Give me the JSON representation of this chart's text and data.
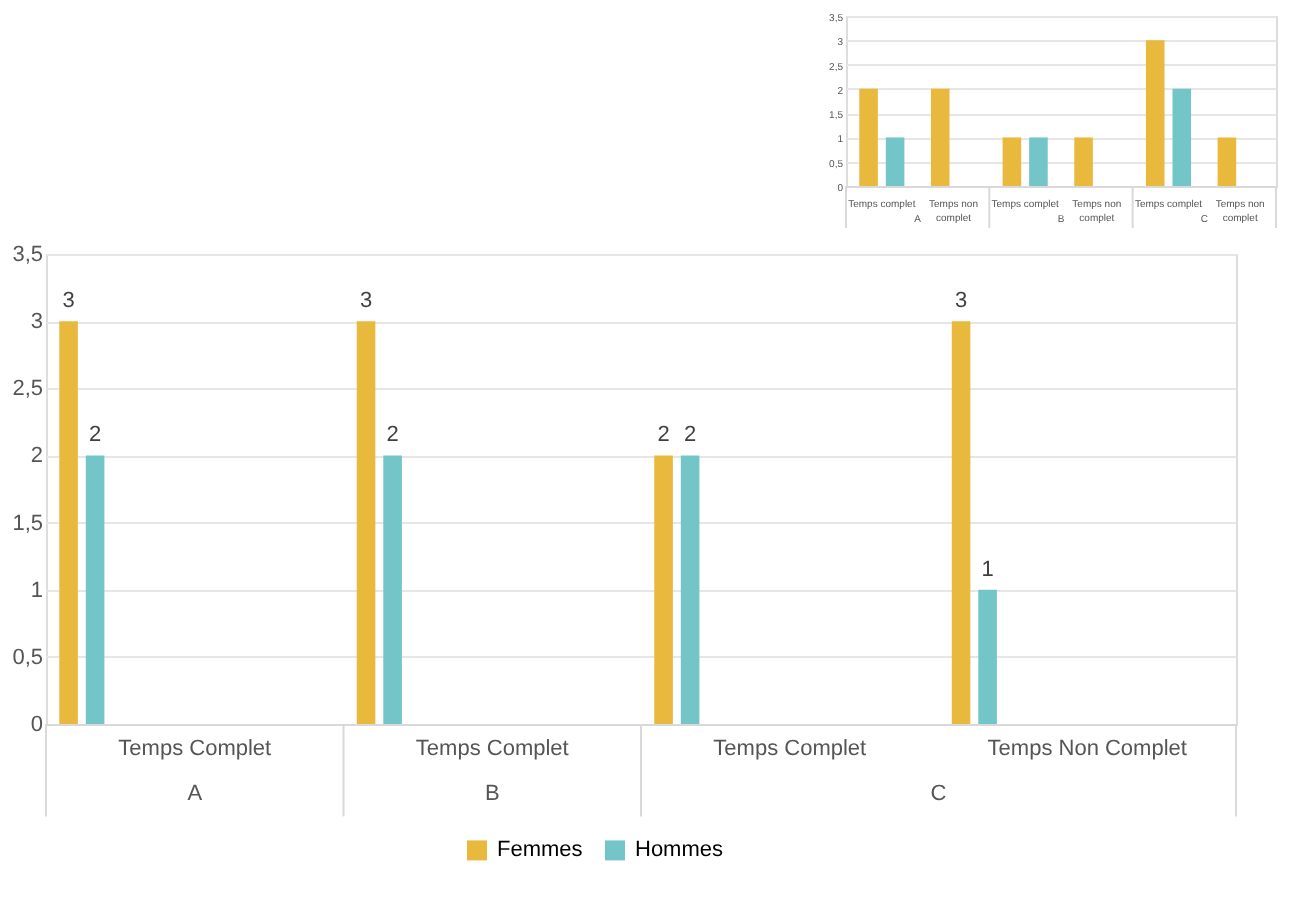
{
  "chart_data": [
    {
      "type": "bar",
      "categories": [
        "Temps complet",
        "Temps non complet",
        "Temps complet",
        "Temps non complet",
        "Temps complet",
        "Temps non complet"
      ],
      "annotations": [
        "A",
        "B",
        "C"
      ],
      "series": [
        {
          "color": "#e8b93d",
          "values": [
            2,
            2,
            1,
            1,
            3,
            1
          ]
        },
        {
          "color": "#73c5c8",
          "values": [
            1,
            0,
            1,
            0,
            2,
            0
          ]
        }
      ],
      "ylim": [
        0,
        3.5
      ],
      "yticks": [
        0,
        {
          "value": 0.5,
          "label": "0,5"
        },
        1,
        {
          "value": 1.5,
          "label": "1,5"
        },
        2,
        {
          "value": 2.5,
          "label": "2,5"
        },
        3,
        {
          "value": 3.5,
          "label": "3,5"
        }
      ],
      "grid": "y",
      "legend": false
    },
    {
      "type": "bar",
      "categories": [
        "Temps Complet",
        "Temps Complet",
        "Temps Complet",
        "Temps Non Complet"
      ],
      "annotations": [
        "A",
        "B",
        "C"
      ],
      "series": [
        {
          "name": "Femmes",
          "color": "#e8b93d",
          "values": [
            3,
            3,
            2,
            3
          ]
        },
        {
          "name": "Hommes",
          "color": "#73c5c8",
          "values": [
            2,
            2,
            2,
            1
          ]
        }
      ],
      "ylim": [
        0,
        3.5
      ],
      "yticks": [
        0,
        {
          "value": 0.5,
          "label": "0,5"
        },
        1,
        {
          "value": 1.5,
          "label": "1,5"
        },
        2,
        {
          "value": 2.5,
          "label": "2,5"
        },
        3,
        {
          "value": 3.5,
          "label": "3,5"
        }
      ],
      "grid": "y",
      "legend": "bottom",
      "data_labels": true
    }
  ]
}
